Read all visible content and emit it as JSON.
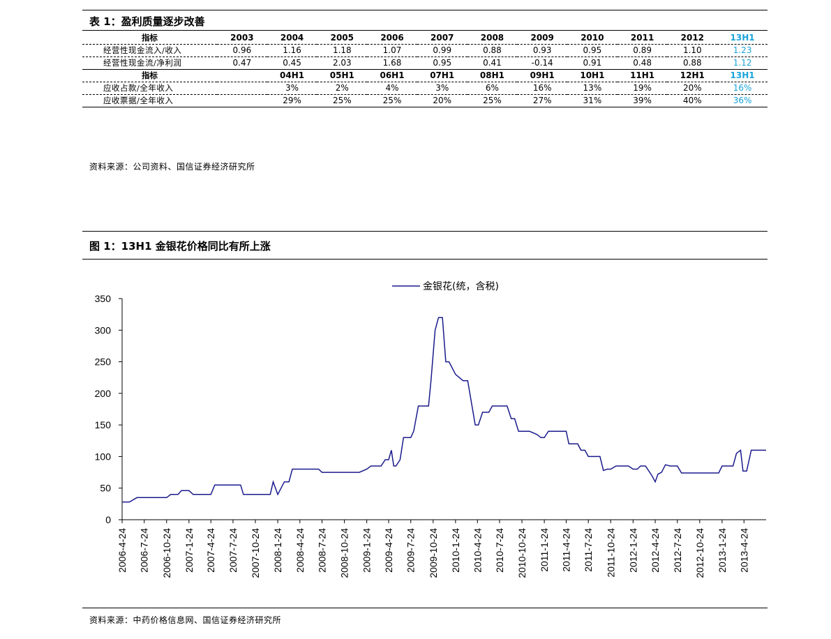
{
  "table": {
    "caption": "表 1：盈利质量逐步改善",
    "rows1_header": {
      "label": "指标",
      "cols": [
        "2003",
        "2004",
        "2005",
        "2006",
        "2007",
        "2008",
        "2009",
        "2010",
        "2011",
        "2012",
        "13H1"
      ]
    },
    "rows1": [
      {
        "label": "经营性现金流入/收入",
        "values": [
          "0.96",
          "1.16",
          "1.18",
          "1.07",
          "0.99",
          "0.88",
          "0.93",
          "0.95",
          "0.89",
          "1.10",
          "1.23"
        ]
      },
      {
        "label": "经营性现金流/净利润",
        "values": [
          "0.47",
          "0.45",
          "2.03",
          "1.68",
          "0.95",
          "0.41",
          "-0.14",
          "0.91",
          "0.48",
          "0.88",
          "1.12"
        ]
      }
    ],
    "rows2_header": {
      "label": "指标",
      "cols": [
        "",
        "04H1",
        "05H1",
        "06H1",
        "07H1",
        "08H1",
        "09H1",
        "10H1",
        "11H1",
        "12H1",
        "13H1"
      ]
    },
    "rows2": [
      {
        "label": "应收占款/全年收入",
        "values": [
          "",
          "3%",
          "2%",
          "4%",
          "3%",
          "6%",
          "16%",
          "13%",
          "19%",
          "20%",
          "16%"
        ]
      },
      {
        "label": "应收票据/全年收入",
        "values": [
          "",
          "29%",
          "25%",
          "25%",
          "20%",
          "25%",
          "27%",
          "31%",
          "39%",
          "40%",
          "36%"
        ]
      }
    ],
    "highlight_color": "#1aa3d9",
    "source": "资料来源：公司资料、国信证券经济研究所"
  },
  "figure": {
    "caption": "图 1：13H1 金银花价格同比有所上涨",
    "source": "资料来源：中药价格信息网、国信证券经济研究所"
  },
  "chart_data": {
    "type": "line",
    "title": "",
    "xlabel": "",
    "ylabel": "",
    "ylim": [
      0,
      350
    ],
    "yticks": [
      0,
      50,
      100,
      150,
      200,
      250,
      300,
      350
    ],
    "xlim": [
      "2006-4-24",
      "2013-7-24"
    ],
    "xticks": [
      "2006-4-24",
      "2006-7-24",
      "2006-10-24",
      "2007-1-24",
      "2007-4-24",
      "2007-7-24",
      "2007-10-24",
      "2008-1-24",
      "2008-4-24",
      "2008-7-24",
      "2008-10-24",
      "2009-1-24",
      "2009-4-24",
      "2009-7-24",
      "2009-10-24",
      "2010-1-24",
      "2010-4-24",
      "2010-7-24",
      "2010-10-24",
      "2011-1-24",
      "2011-4-24",
      "2011-7-24",
      "2011-10-24",
      "2012-1-24",
      "2012-4-24",
      "2012-7-24",
      "2012-10-24",
      "2013-1-24",
      "2013-4-24"
    ],
    "legend_position": "top-center",
    "grid": false,
    "series": [
      {
        "name": "金银花(统，含税)",
        "color": "#1a1a8c",
        "points": [
          [
            "2006-4-24",
            28
          ],
          [
            "2006-5-24",
            28
          ],
          [
            "2006-6-24",
            35
          ],
          [
            "2006-7-24",
            35
          ],
          [
            "2006-8-24",
            35
          ],
          [
            "2006-9-24",
            35
          ],
          [
            "2006-10-24",
            35
          ],
          [
            "2006-11-10",
            40
          ],
          [
            "2006-12-10",
            40
          ],
          [
            "2006-12-24",
            46
          ],
          [
            "2007-1-24",
            46
          ],
          [
            "2007-2-10",
            40
          ],
          [
            "2007-3-24",
            40
          ],
          [
            "2007-4-24",
            40
          ],
          [
            "2007-5-10",
            55
          ],
          [
            "2007-6-24",
            55
          ],
          [
            "2007-7-24",
            55
          ],
          [
            "2007-8-24",
            55
          ],
          [
            "2007-9-5",
            40
          ],
          [
            "2007-10-24",
            40
          ],
          [
            "2007-11-24",
            40
          ],
          [
            "2007-12-24",
            40
          ],
          [
            "2008-1-5",
            60
          ],
          [
            "2008-1-24",
            40
          ],
          [
            "2008-2-20",
            60
          ],
          [
            "2008-3-10",
            60
          ],
          [
            "2008-3-24",
            80
          ],
          [
            "2008-4-24",
            80
          ],
          [
            "2008-5-24",
            80
          ],
          [
            "2008-6-24",
            80
          ],
          [
            "2008-7-10",
            80
          ],
          [
            "2008-7-24",
            75
          ],
          [
            "2008-8-24",
            75
          ],
          [
            "2008-9-24",
            75
          ],
          [
            "2008-10-24",
            75
          ],
          [
            "2008-11-24",
            75
          ],
          [
            "2008-12-24",
            75
          ],
          [
            "2009-1-24",
            80
          ],
          [
            "2009-2-10",
            85
          ],
          [
            "2009-3-10",
            85
          ],
          [
            "2009-3-24",
            85
          ],
          [
            "2009-4-10",
            95
          ],
          [
            "2009-4-24",
            95
          ],
          [
            "2009-5-5",
            110
          ],
          [
            "2009-5-15",
            85
          ],
          [
            "2009-5-24",
            85
          ],
          [
            "2009-6-10",
            95
          ],
          [
            "2009-6-24",
            130
          ],
          [
            "2009-7-24",
            130
          ],
          [
            "2009-8-5",
            140
          ],
          [
            "2009-8-24",
            180
          ],
          [
            "2009-9-24",
            180
          ],
          [
            "2009-10-5",
            180
          ],
          [
            "2009-10-15",
            220
          ],
          [
            "2009-11-1",
            300
          ],
          [
            "2009-11-15",
            320
          ],
          [
            "2009-12-1",
            320
          ],
          [
            "2009-12-15",
            250
          ],
          [
            "2009-12-28",
            250
          ],
          [
            "2010-1-24",
            230
          ],
          [
            "2010-2-24",
            220
          ],
          [
            "2010-3-15",
            220
          ],
          [
            "2010-4-15",
            150
          ],
          [
            "2010-4-28",
            150
          ],
          [
            "2010-5-15",
            170
          ],
          [
            "2010-6-10",
            170
          ],
          [
            "2010-6-24",
            180
          ],
          [
            "2010-7-24",
            180
          ],
          [
            "2010-8-24",
            180
          ],
          [
            "2010-9-10",
            160
          ],
          [
            "2010-9-24",
            160
          ],
          [
            "2010-10-10",
            140
          ],
          [
            "2010-10-24",
            140
          ],
          [
            "2010-11-24",
            140
          ],
          [
            "2010-12-24",
            135
          ],
          [
            "2011-1-10",
            130
          ],
          [
            "2011-1-24",
            130
          ],
          [
            "2011-2-10",
            140
          ],
          [
            "2011-2-24",
            140
          ],
          [
            "2011-3-24",
            140
          ],
          [
            "2011-4-24",
            140
          ],
          [
            "2011-5-5",
            120
          ],
          [
            "2011-5-24",
            120
          ],
          [
            "2011-6-10",
            120
          ],
          [
            "2011-6-24",
            110
          ],
          [
            "2011-7-10",
            110
          ],
          [
            "2011-7-24",
            100
          ],
          [
            "2011-8-24",
            100
          ],
          [
            "2011-9-10",
            100
          ],
          [
            "2011-9-24",
            78
          ],
          [
            "2011-10-10",
            80
          ],
          [
            "2011-10-24",
            80
          ],
          [
            "2011-11-15",
            85
          ],
          [
            "2011-12-24",
            85
          ],
          [
            "2012-1-5",
            85
          ],
          [
            "2012-1-24",
            80
          ],
          [
            "2012-2-10",
            80
          ],
          [
            "2012-2-24",
            85
          ],
          [
            "2012-3-15",
            85
          ],
          [
            "2012-4-10",
            70
          ],
          [
            "2012-4-24",
            60
          ],
          [
            "2012-5-5",
            72
          ],
          [
            "2012-5-20",
            75
          ],
          [
            "2012-6-5",
            87
          ],
          [
            "2012-6-24",
            85
          ],
          [
            "2012-7-24",
            85
          ],
          [
            "2012-8-10",
            74
          ],
          [
            "2012-8-24",
            74
          ],
          [
            "2012-9-24",
            74
          ],
          [
            "2012-10-24",
            74
          ],
          [
            "2012-11-24",
            74
          ],
          [
            "2012-12-24",
            74
          ],
          [
            "2013-1-10",
            74
          ],
          [
            "2013-1-24",
            85
          ],
          [
            "2013-2-24",
            85
          ],
          [
            "2013-3-10",
            85
          ],
          [
            "2013-3-24",
            105
          ],
          [
            "2013-4-10",
            110
          ],
          [
            "2013-4-20",
            77
          ],
          [
            "2013-5-5",
            77
          ],
          [
            "2013-5-24",
            110
          ],
          [
            "2013-6-24",
            110
          ],
          [
            "2013-7-24",
            110
          ]
        ]
      }
    ]
  }
}
